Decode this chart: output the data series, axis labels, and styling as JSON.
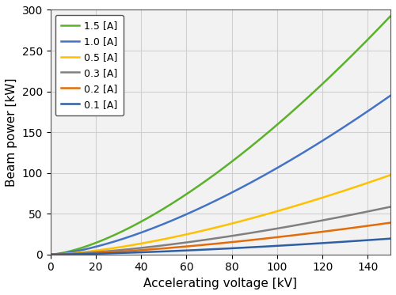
{
  "title": "",
  "xlabel": "Accelerating voltage [kV]",
  "ylabel": "Beam power [kW]",
  "xlim": [
    0,
    150
  ],
  "ylim": [
    0,
    300
  ],
  "xticks": [
    0,
    20,
    40,
    60,
    80,
    100,
    120,
    140
  ],
  "yticks": [
    0,
    50,
    100,
    150,
    200,
    250,
    300
  ],
  "currents": [
    1.5,
    1.0,
    0.5,
    0.3,
    0.2,
    0.1
  ],
  "colors": [
    "#5ab12a",
    "#4472c4",
    "#ffc000",
    "#808080",
    "#e36c09",
    "#2e5fa3"
  ],
  "legend_labels": [
    "1.5 [A]",
    "1.0 [A]",
    "0.5 [A]",
    "0.3 [A]",
    "0.2 [A]",
    "0.1 [A]"
  ],
  "grid_color": "#d0d0d0",
  "background_color": "#f2f2f2",
  "linewidth": 1.8,
  "power_exponent": 1.5,
  "power_scale": 0.1061
}
